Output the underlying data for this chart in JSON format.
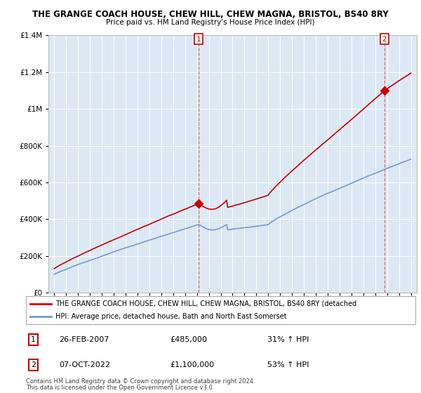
{
  "title": "THE GRANGE COACH HOUSE, CHEW HILL, CHEW MAGNA, BRISTOL, BS40 8RY",
  "subtitle": "Price paid vs. HM Land Registry's House Price Index (HPI)",
  "red_line_label": "THE GRANGE COACH HOUSE, CHEW HILL, CHEW MAGNA, BRISTOL, BS40 8RY (detached",
  "blue_line_label": "HPI: Average price, detached house, Bath and North East Somerset",
  "annotation1_label": "1",
  "annotation1_date": "26-FEB-2007",
  "annotation1_price": "£485,000",
  "annotation1_hpi": "31% ↑ HPI",
  "annotation2_label": "2",
  "annotation2_date": "07-OCT-2022",
  "annotation2_price": "£1,100,000",
  "annotation2_hpi": "53% ↑ HPI",
  "footnote1": "Contains HM Land Registry data © Crown copyright and database right 2024.",
  "footnote2": "This data is licensed under the Open Government Licence v3.0.",
  "red_color": "#cc0000",
  "blue_color": "#7799cc",
  "vline_color": "#dd6666",
  "marker1_x": 2007.15,
  "marker1_y": 485000,
  "marker2_x": 2022.77,
  "marker2_y": 1100000,
  "ylim": [
    0,
    1400000
  ],
  "xlim": [
    1994.5,
    2025.5
  ],
  "chart_bg": "#dce9f5",
  "fig_bg": "#ffffff",
  "grid_color": "#ffffff"
}
